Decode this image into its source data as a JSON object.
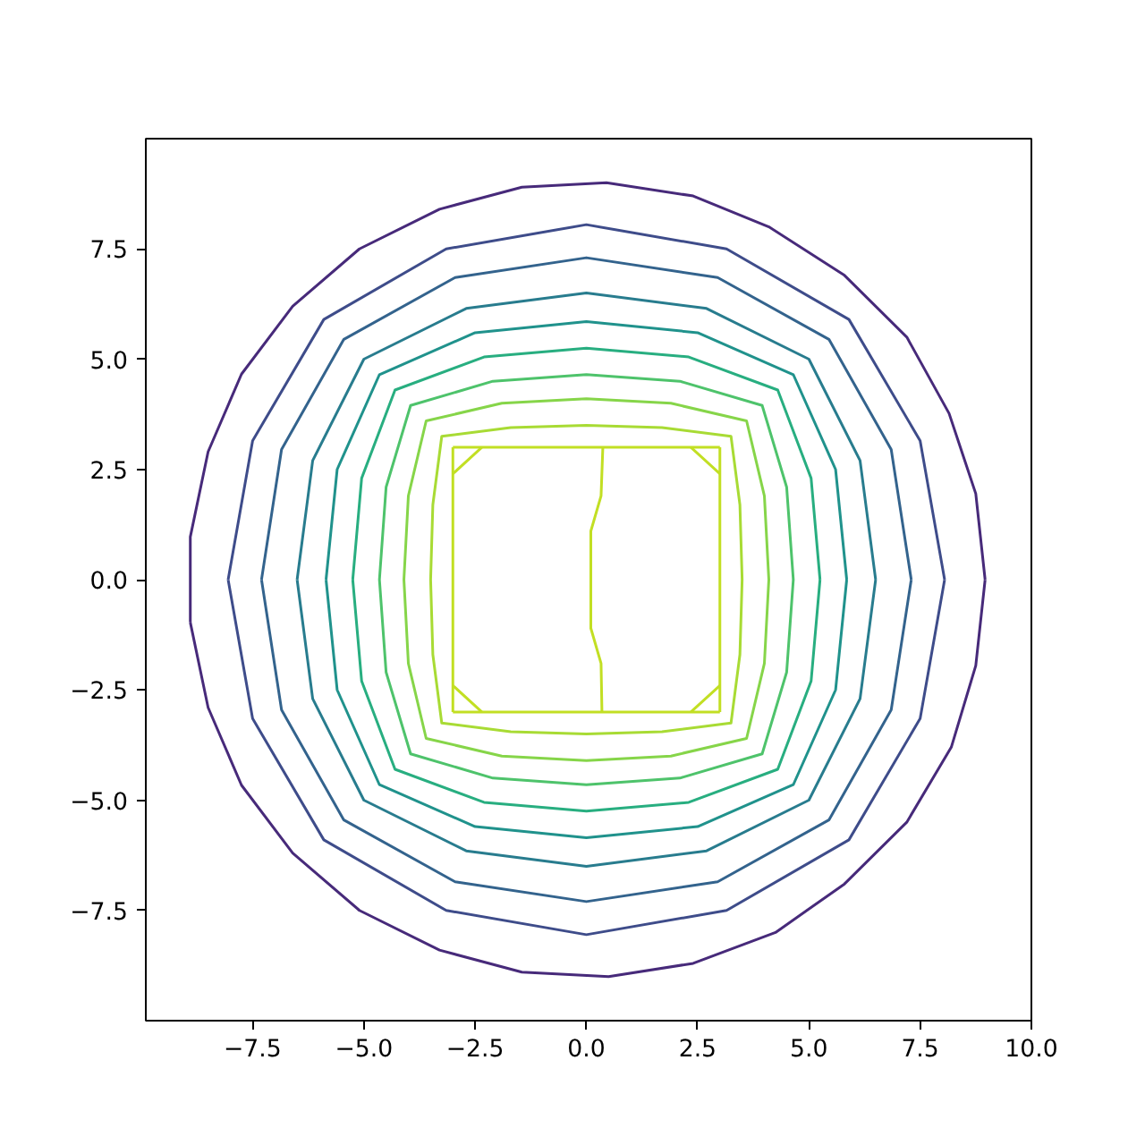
{
  "chart_data": {
    "type": "line",
    "xlim": [
      -9.9,
      10
    ],
    "ylim": [
      -10,
      10
    ],
    "xticks": [
      {
        "value": -7.5,
        "label": "−7.5"
      },
      {
        "value": -5,
        "label": "−5.0"
      },
      {
        "value": -2.5,
        "label": "−2.5"
      },
      {
        "value": 0,
        "label": "0.0"
      },
      {
        "value": 2.5,
        "label": "2.5"
      },
      {
        "value": 5,
        "label": "5.0"
      },
      {
        "value": 7.5,
        "label": "7.5"
      },
      {
        "value": 10,
        "label": "10.0"
      }
    ],
    "yticks": [
      {
        "value": -7.5,
        "label": "−7.5"
      },
      {
        "value": -5,
        "label": "−5.0"
      },
      {
        "value": -2.5,
        "label": "−2.5"
      },
      {
        "value": 0,
        "label": "0.0"
      },
      {
        "value": 2.5,
        "label": "2.5"
      },
      {
        "value": 5,
        "label": "5.0"
      },
      {
        "value": 7.5,
        "label": "7.5"
      }
    ],
    "series": [
      {
        "color": "#472a7a",
        "x": [
          -8.9,
          -8.9,
          -8.5,
          -7.75,
          -6.6,
          -5.1,
          -3.3,
          -1.45,
          0.45,
          2.4,
          4.1,
          5.8,
          7.2,
          8.15,
          8.75,
          8.96,
          null,
          -8.9,
          -8.5,
          -7.75,
          -6.6,
          -5.1,
          -3.3,
          -1.45,
          0.5,
          2.4,
          4.25,
          5.8,
          7.2,
          8.2,
          8.75,
          8.96
        ],
        "values": [
          -0.97,
          0.97,
          2.9,
          4.66,
          6.2,
          7.5,
          8.4,
          8.9,
          9.0,
          8.7,
          8.0,
          6.9,
          5.5,
          3.77,
          1.95,
          0,
          null,
          -0.97,
          -2.9,
          -4.66,
          -6.2,
          -7.5,
          -8.4,
          -8.9,
          -9.0,
          -8.7,
          -8.0,
          -6.9,
          -5.5,
          -3.8,
          -1.95,
          0
        ]
      },
      {
        "color": "#3e4c8a",
        "x": [
          -8.05,
          -7.5,
          -5.9,
          -3.15,
          0,
          3.15,
          5.9,
          7.5,
          8.05,
          null,
          -8.05,
          -7.5,
          -5.9,
          -3.15,
          0,
          3.15,
          5.9,
          7.5,
          8.05
        ],
        "values": [
          0,
          3.15,
          5.9,
          7.5,
          8.05,
          7.5,
          5.9,
          3.15,
          0,
          null,
          0,
          -3.15,
          -5.9,
          -7.5,
          -8.05,
          -7.5,
          -5.9,
          -3.15,
          0
        ]
      },
      {
        "color": "#33638d",
        "x": [
          -7.3,
          -6.85,
          -5.45,
          -2.95,
          0,
          2.95,
          5.45,
          6.85,
          7.3,
          null,
          -7.3,
          -6.85,
          -5.45,
          -2.95,
          0,
          2.95,
          5.45,
          6.85,
          7.3
        ],
        "values": [
          0,
          2.95,
          5.45,
          6.85,
          7.3,
          6.85,
          5.45,
          2.95,
          0,
          null,
          0,
          -2.95,
          -5.45,
          -6.85,
          -7.3,
          -6.85,
          -5.45,
          -2.95,
          0
        ]
      },
      {
        "color": "#287c8e",
        "x": [
          -6.5,
          -6.15,
          -5.0,
          -2.7,
          0,
          2.7,
          5.0,
          6.15,
          6.5,
          null,
          -6.5,
          -6.15,
          -5.0,
          -2.7,
          0,
          2.7,
          5.0,
          6.15,
          6.5
        ],
        "values": [
          0,
          2.7,
          5.0,
          6.15,
          6.5,
          6.15,
          5.0,
          2.7,
          0,
          null,
          0,
          -2.7,
          -5.0,
          -6.15,
          -6.5,
          -6.15,
          -5.0,
          -2.7,
          0
        ]
      },
      {
        "color": "#20928c",
        "x": [
          -5.85,
          -5.6,
          -4.65,
          -2.5,
          0,
          2.5,
          4.65,
          5.6,
          5.85,
          null,
          -5.85,
          -5.6,
          -4.65,
          -2.5,
          0,
          2.5,
          4.65,
          5.6,
          5.85
        ],
        "values": [
          0,
          2.5,
          4.65,
          5.6,
          5.85,
          5.6,
          4.65,
          2.5,
          0,
          null,
          0,
          -2.5,
          -4.65,
          -5.6,
          -5.85,
          -5.6,
          -4.65,
          -2.5,
          0
        ]
      },
      {
        "color": "#28ae80",
        "x": [
          -5.25,
          -5.05,
          -4.3,
          -2.3,
          0,
          2.3,
          4.3,
          5.05,
          5.25,
          null,
          -5.25,
          -5.05,
          -4.3,
          -2.3,
          0,
          2.3,
          4.3,
          5.05,
          5.25
        ],
        "values": [
          0,
          2.3,
          4.3,
          5.05,
          5.25,
          5.05,
          4.3,
          2.3,
          0,
          null,
          0,
          -2.3,
          -4.3,
          -5.05,
          -5.25,
          -5.05,
          -4.3,
          -2.3,
          0
        ]
      },
      {
        "color": "#4ec36b",
        "x": [
          -4.65,
          -4.5,
          -3.95,
          -2.1,
          0,
          2.1,
          3.95,
          4.5,
          4.65,
          null,
          -4.65,
          -4.5,
          -3.95,
          -2.1,
          0,
          2.1,
          3.95,
          4.5,
          4.65
        ],
        "values": [
          0,
          2.1,
          3.95,
          4.5,
          4.65,
          4.5,
          3.95,
          2.1,
          0,
          null,
          0,
          -2.1,
          -3.95,
          -4.5,
          -4.65,
          -4.5,
          -3.95,
          -2.1,
          0
        ]
      },
      {
        "color": "#86d549",
        "x": [
          -4.1,
          -4.0,
          -3.6,
          -1.9,
          0,
          1.9,
          3.6,
          4.0,
          4.1,
          null,
          -4.1,
          -4.0,
          -3.6,
          -1.9,
          0,
          1.9,
          3.6,
          4.0,
          4.1
        ],
        "values": [
          0,
          1.9,
          3.6,
          4.0,
          4.1,
          4.0,
          3.6,
          1.9,
          0,
          null,
          0,
          -1.9,
          -3.6,
          -4.0,
          -4.1,
          -4.0,
          -3.6,
          -1.9,
          0
        ]
      },
      {
        "color": "#a8db34",
        "x": [
          -3.5,
          -3.45,
          -3.25,
          -1.7,
          0,
          1.7,
          3.25,
          3.45,
          3.5,
          null,
          -3.5,
          -3.45,
          -3.25,
          -1.7,
          0,
          1.7,
          3.25,
          3.45,
          3.5
        ],
        "values": [
          0,
          1.7,
          3.25,
          3.45,
          3.5,
          3.45,
          3.25,
          1.7,
          0,
          null,
          0,
          -1.7,
          -3.25,
          -3.45,
          -3.5,
          -3.45,
          -3.25,
          -1.7,
          0
        ]
      },
      {
        "color": "#c2df23",
        "x": [
          -3,
          3
        ],
        "values": [
          3,
          3
        ]
      },
      {
        "color": "#c2df23",
        "x": [
          -3,
          3
        ],
        "values": [
          -3,
          -3
        ]
      },
      {
        "color": "#c2df23",
        "x": [
          -3,
          -3,
          null,
          3,
          3
        ],
        "values": [
          3,
          -3,
          null,
          3,
          -3
        ]
      },
      {
        "color": "#c2df23",
        "x": [
          -3,
          -2.35,
          null,
          2.35,
          3
        ],
        "values": [
          2.4,
          3,
          null,
          3,
          2.4
        ]
      },
      {
        "color": "#c2df23",
        "x": [
          -3,
          -2.35,
          null,
          2.35,
          3
        ],
        "values": [
          -2.4,
          -3,
          null,
          -3,
          -2.4
        ]
      },
      {
        "color": "#c2df23",
        "x": [
          0.35,
          0.33,
          0.1,
          0.1,
          0.33,
          0.37
        ],
        "values": [
          -3,
          -1.9,
          -1.1,
          1.1,
          1.9,
          3
        ]
      }
    ]
  }
}
